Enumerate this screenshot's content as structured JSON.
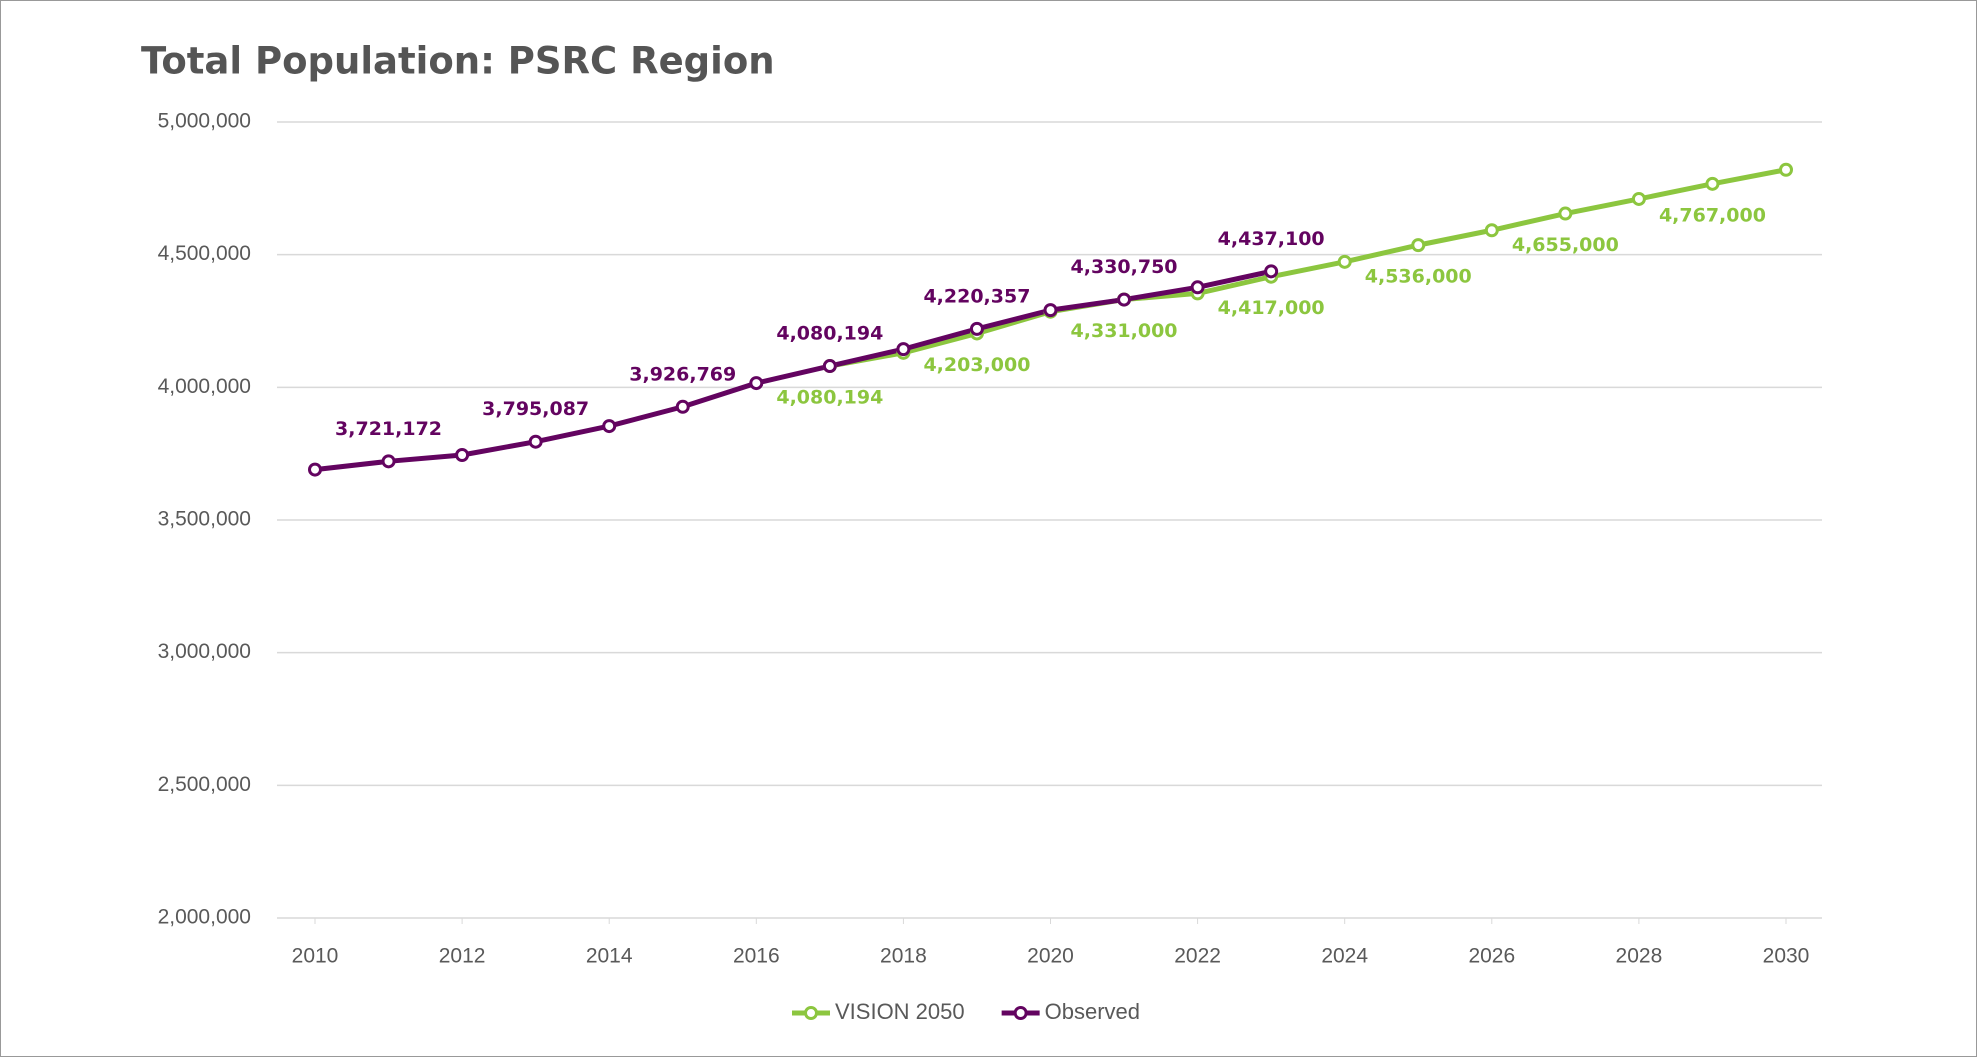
{
  "chart_data": {
    "type": "line",
    "title": "Total Population: PSRC Region",
    "x": [
      2010,
      2011,
      2012,
      2013,
      2014,
      2015,
      2016,
      2017,
      2018,
      2019,
      2020,
      2021,
      2022,
      2023,
      2024,
      2025,
      2026,
      2027,
      2028,
      2029,
      2030
    ],
    "xlim": [
      2010,
      2030
    ],
    "xticks": [
      2010,
      2012,
      2014,
      2016,
      2018,
      2020,
      2022,
      2024,
      2026,
      2028,
      2030
    ],
    "ylim": [
      2000000,
      5000000
    ],
    "yticks": [
      {
        "value": 2000000,
        "label": "2,000,000"
      },
      {
        "value": 2500000,
        "label": "2,500,000"
      },
      {
        "value": 3000000,
        "label": "3,000,000"
      },
      {
        "value": 3500000,
        "label": "3,500,000"
      },
      {
        "value": 4000000,
        "label": "4,000,000"
      },
      {
        "value": 4500000,
        "label": "4,500,000"
      },
      {
        "value": 5000000,
        "label": "5,000,000"
      }
    ],
    "grid": true,
    "legend": "bottom",
    "series": [
      {
        "name": "VISION 2050",
        "color": "#8cc63f",
        "values": [
          null,
          null,
          null,
          null,
          null,
          null,
          null,
          4080194,
          4130000,
          4203000,
          4285000,
          4331000,
          4354000,
          4417000,
          4473000,
          4536000,
          4592000,
          4655000,
          4710000,
          4767000,
          4820000
        ],
        "value_labels": [
          null,
          null,
          null,
          null,
          null,
          null,
          null,
          "4,080,194",
          null,
          "4,203,000",
          null,
          "4,331,000",
          null,
          "4,417,000",
          null,
          "4,536,000",
          null,
          "4,655,000",
          null,
          "4,767,000",
          null
        ]
      },
      {
        "name": "Observed",
        "color": "#630460",
        "values": [
          3690000,
          3721172,
          3745000,
          3795087,
          3854000,
          3926769,
          4016000,
          4080194,
          4144000,
          4220357,
          4291000,
          4330750,
          4377000,
          4437100,
          null,
          null,
          null,
          null,
          null,
          null,
          null
        ],
        "value_labels": [
          null,
          "3,721,172",
          null,
          "3,795,087",
          null,
          "3,926,769",
          null,
          "4,080,194",
          null,
          "4,220,357",
          null,
          "4,330,750",
          null,
          "4,437,100",
          null,
          null,
          null,
          null,
          null,
          null,
          null
        ]
      }
    ]
  }
}
